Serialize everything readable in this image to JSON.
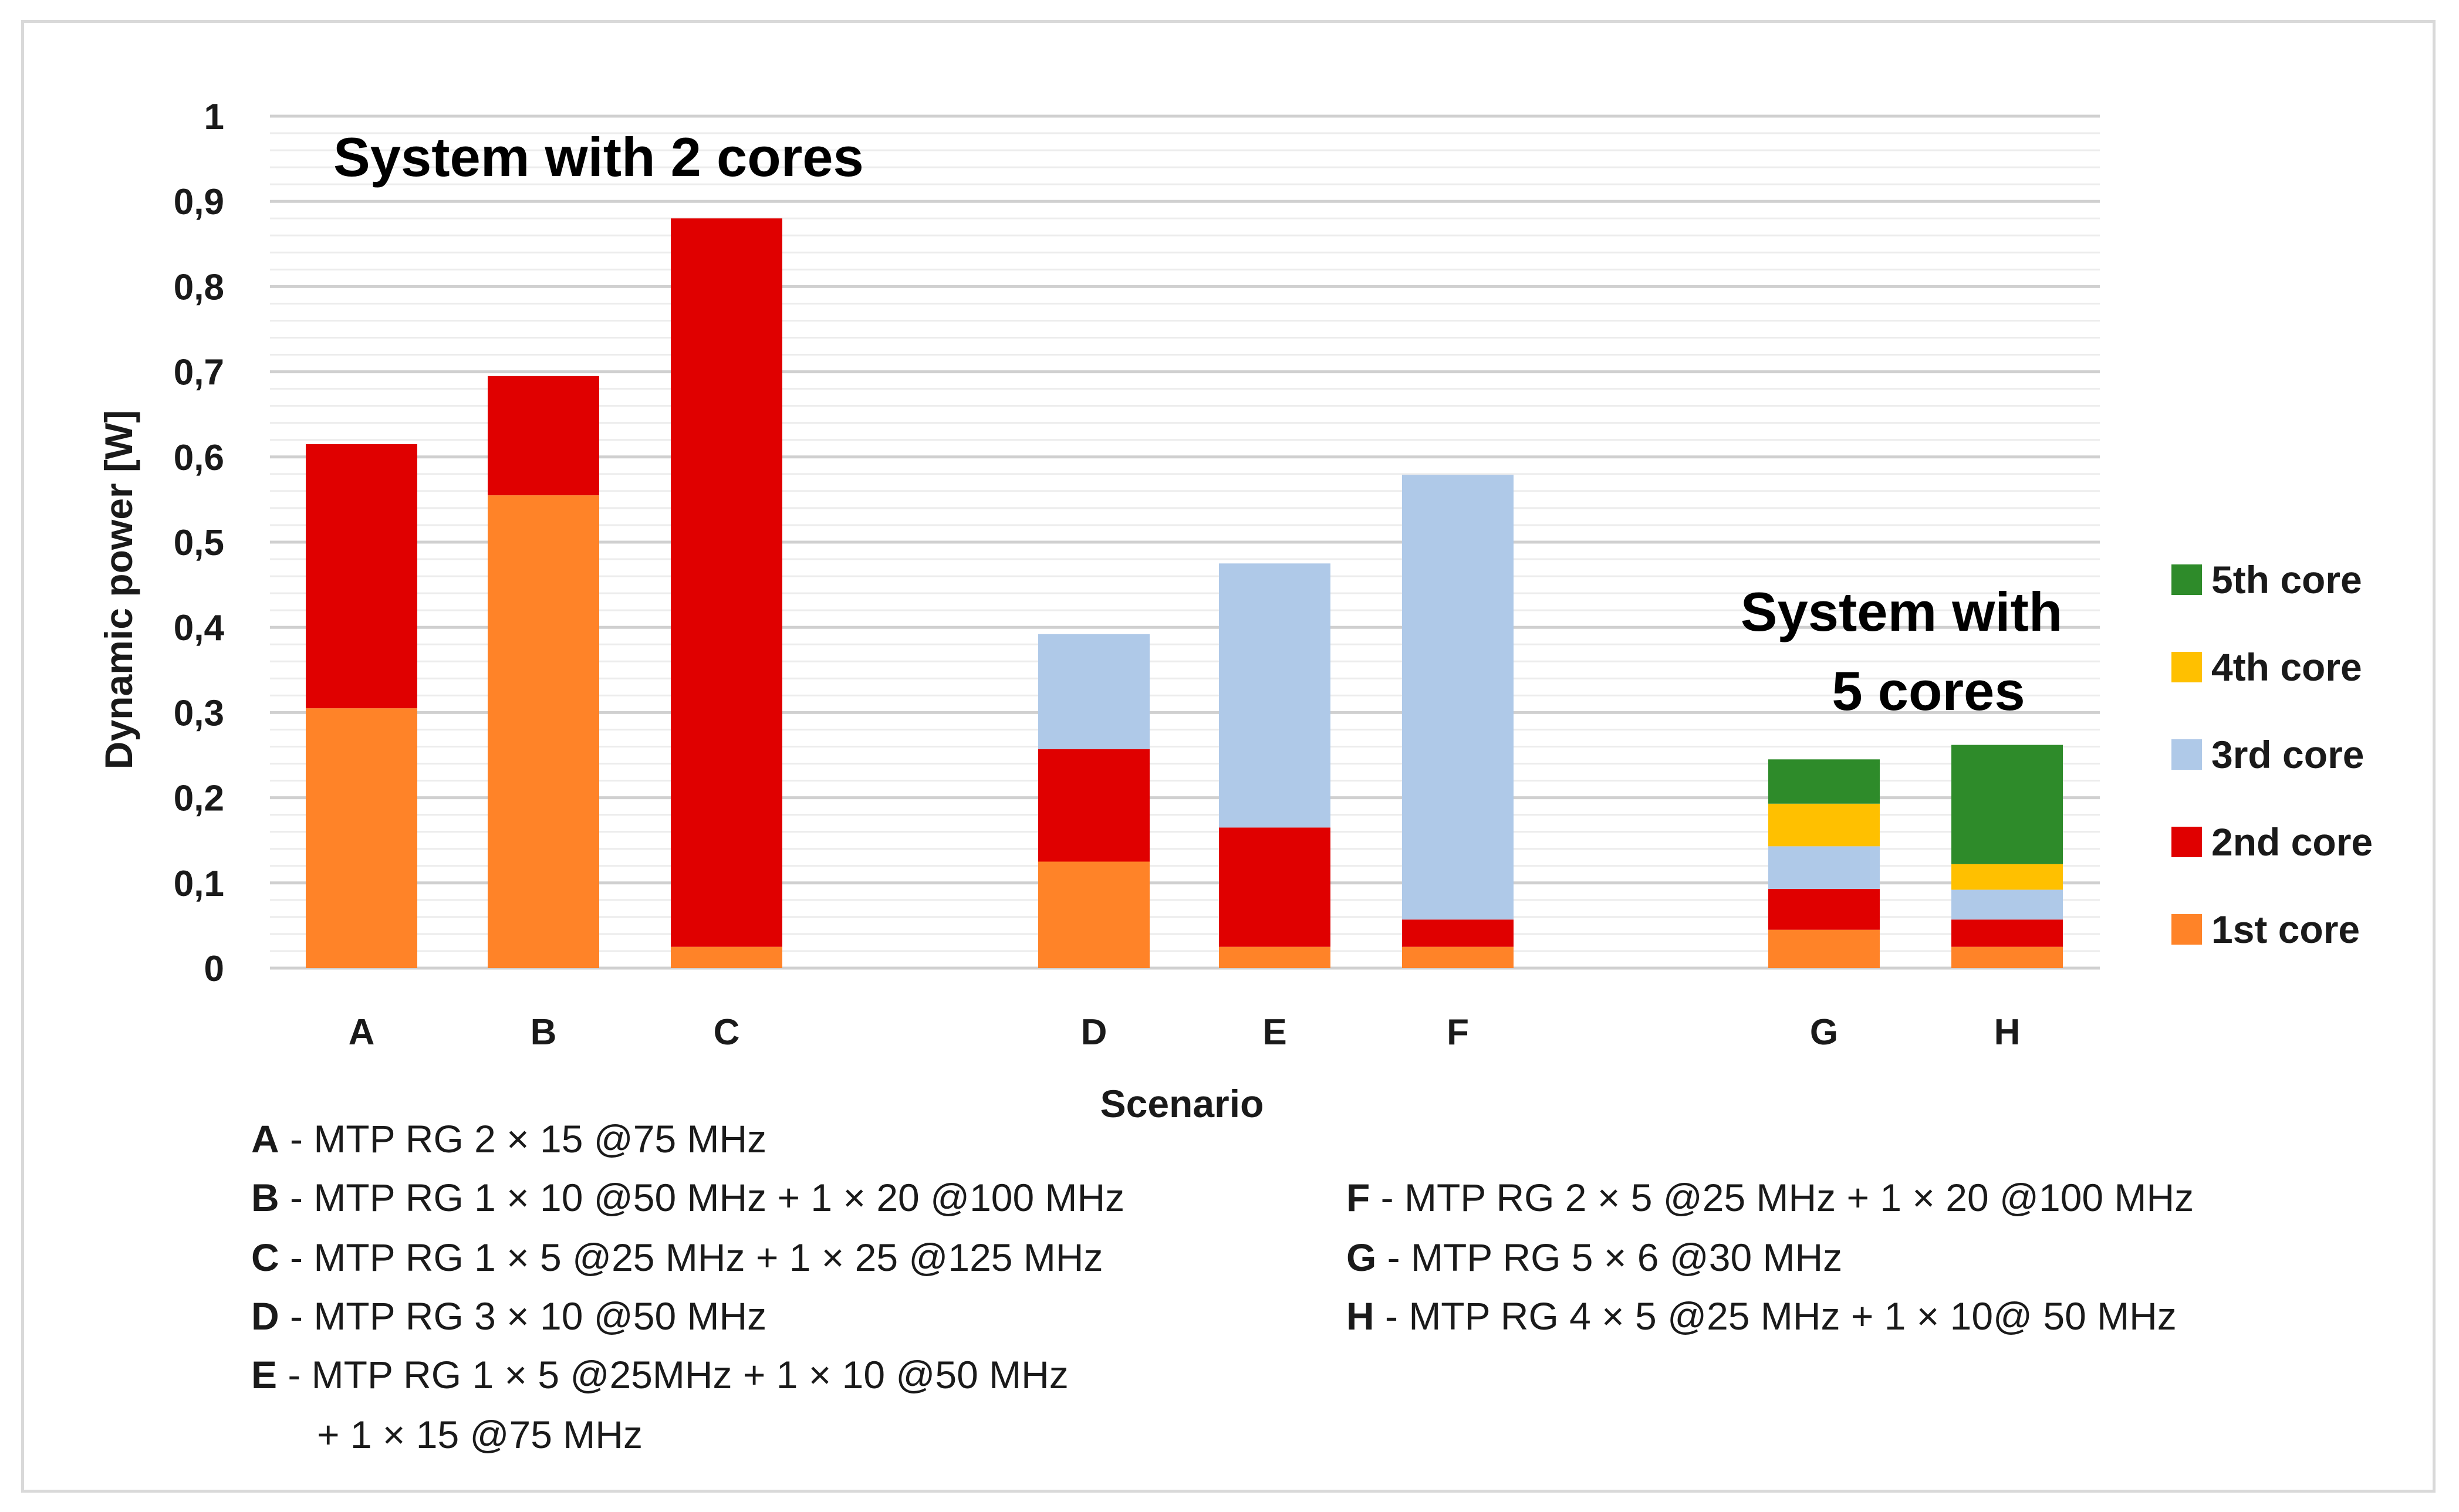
{
  "chart_data": {
    "type": "bar",
    "stacked": true,
    "xlabel": "Scenario",
    "ylabel": "Dynamic power [W]",
    "ylim": [
      0,
      1
    ],
    "yticks": [
      "0",
      "0,1",
      "0,2",
      "0,3",
      "0,4",
      "0,5",
      "0,6",
      "0,7",
      "0,8",
      "0,9",
      "1"
    ],
    "ytick_values": [
      0,
      0.1,
      0.2,
      0.3,
      0.4,
      0.5,
      0.6,
      0.7,
      0.8,
      0.9,
      1.0
    ],
    "categories": [
      "A",
      "B",
      "C",
      "D",
      "E",
      "F",
      "G",
      "H"
    ],
    "groups": [
      {
        "label": "System with 2 cores",
        "categories": [
          "A",
          "B",
          "C"
        ]
      },
      {
        "label_lines": [
          "System with",
          "5 cores"
        ],
        "categories": [
          "G",
          "H"
        ]
      }
    ],
    "series": [
      {
        "name": "1st core",
        "color": "#FF8328",
        "values": [
          0.305,
          0.555,
          0.025,
          0.125,
          0.025,
          0.025,
          0.045,
          0.025
        ]
      },
      {
        "name": "2nd core",
        "color": "#E00000",
        "values": [
          0.31,
          0.14,
          0.855,
          0.132,
          0.14,
          0.032,
          0.048,
          0.032
        ]
      },
      {
        "name": "3rd core",
        "color": "#AFC9E8",
        "values": [
          0,
          0,
          0,
          0.135,
          0.31,
          0.522,
          0.05,
          0.035
        ]
      },
      {
        "name": "4th core",
        "color": "#FFC000",
        "values": [
          0,
          0,
          0,
          0,
          0,
          0,
          0.05,
          0.03
        ]
      },
      {
        "name": "5th core",
        "color": "#2E8B2A",
        "values": [
          0,
          0,
          0,
          0,
          0,
          0,
          0.052,
          0.14
        ]
      }
    ],
    "legend_order": [
      "5th core",
      "4th core",
      "3rd core",
      "2nd core",
      "1st core"
    ],
    "grid": true,
    "legend_position": "right"
  },
  "descriptions": [
    {
      "key": "A",
      "text": " - MTP RG 2 × 15 @75 MHz"
    },
    {
      "key": "B",
      "text": " - MTP RG 1 × 10 @50 MHz + 1 × 20 @100 MHz"
    },
    {
      "key": "C",
      "text": " - MTP RG 1 × 5 @25 MHz + 1 × 25 @125 MHz"
    },
    {
      "key": "D",
      "text": " - MTP RG 3 × 10 @50 MHz"
    },
    {
      "key": "E",
      "text": " - MTP RG 1 × 5 @25MHz  + 1 × 10 @50 MHz",
      "continuation": "+ 1 × 15 @75 MHz"
    },
    {
      "key": "F",
      "text": " - MTP RG 2 × 5 @25 MHz + 1 × 20 @100 MHz"
    },
    {
      "key": "G",
      "text": " - MTP RG 5 × 6 @30 MHz"
    },
    {
      "key": "H",
      "text": " - MTP RG 4 × 5 @25 MHz + 1 × 10@ 50 MHz"
    }
  ]
}
